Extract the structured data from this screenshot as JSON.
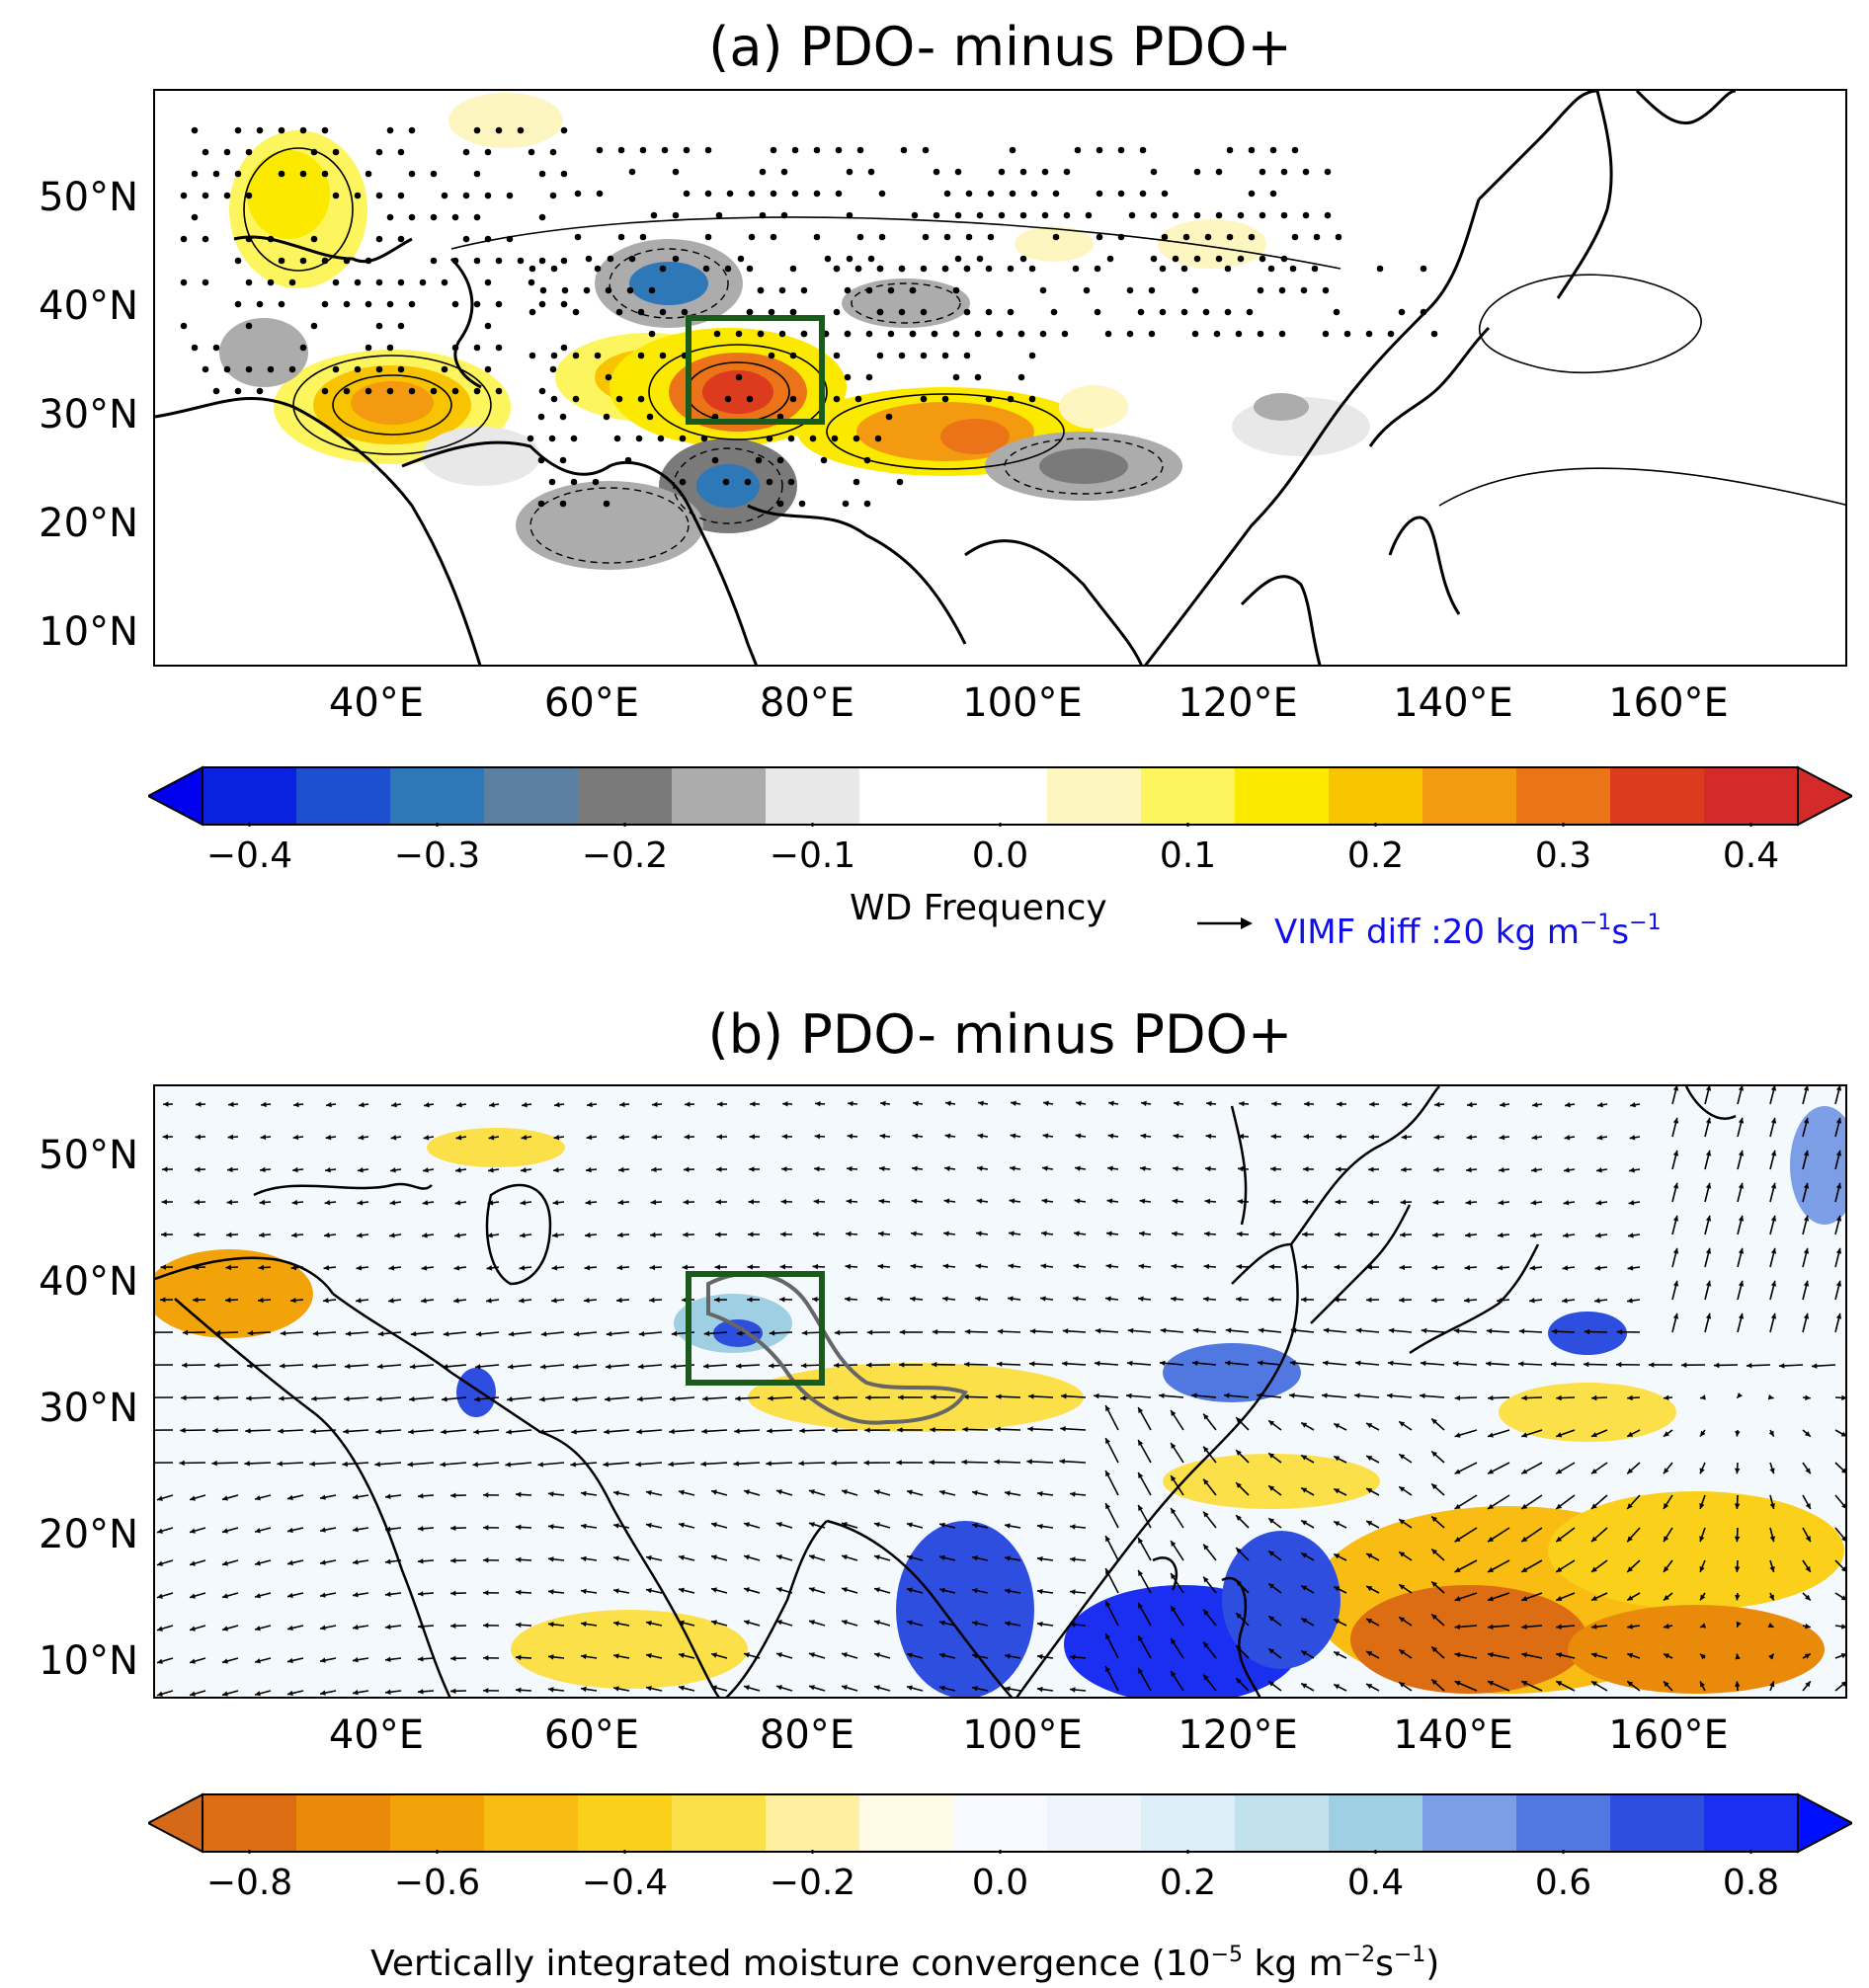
{
  "panel_a": {
    "title": "(a) PDO- minus PDO+",
    "lat_labels": [
      "50°N",
      "40°N",
      "30°N",
      "20°N",
      "10°N"
    ],
    "lon_labels": [
      "40°E",
      "60°E",
      "80°E",
      "100°E",
      "120°E",
      "140°E",
      "160°E"
    ],
    "colorbar": {
      "ticks": [
        "−0.4",
        "−0.3",
        "−0.2",
        "−0.1",
        "0.0",
        "0.1",
        "0.2",
        "0.3",
        "0.4"
      ],
      "label": "WD Frequency",
      "colors": [
        "#0a22e0",
        "#1e4fd1",
        "#2e78b8",
        "#5a7fa0",
        "#7a7a7a",
        "#acacac",
        "#e8e8e8",
        "#ffffff",
        "#ffffff",
        "#fdf6c0",
        "#fdf55e",
        "#fbe900",
        "#f8c400",
        "#f39a10",
        "#ec7418",
        "#dd3b1e",
        "#d42a2a"
      ],
      "extend_low": "#0000ee",
      "extend_high": "#d42a2a"
    },
    "vimf_key": {
      "label": "VIMF diff :20 kg m",
      "exp1": "−1",
      "mid": "s",
      "exp2": "−1"
    }
  },
  "panel_b": {
    "title": "(b) PDO- minus PDO+",
    "lat_labels": [
      "50°N",
      "40°N",
      "30°N",
      "20°N",
      "10°N"
    ],
    "lon_labels": [
      "40°E",
      "60°E",
      "80°E",
      "100°E",
      "120°E",
      "140°E",
      "160°E"
    ],
    "colorbar": {
      "ticks": [
        "−0.8",
        "−0.6",
        "−0.4",
        "−0.2",
        "0.0",
        "0.2",
        "0.4",
        "0.6",
        "0.8"
      ],
      "label_pre": "Vertically integrated moisture convergence (10",
      "label_exp1": "−5",
      "label_mid": " kg m",
      "label_exp2": "−2",
      "label_s": "s",
      "label_exp3": "−1",
      "label_post": ")",
      "colors": [
        "#dc6d12",
        "#e98a0a",
        "#f2a30a",
        "#f8bc12",
        "#fad01a",
        "#fce04a",
        "#fef0a0",
        "#fffbe6",
        "#f7fbff",
        "#eef5fc",
        "#dceef7",
        "#c2e1ee",
        "#9fcfe3",
        "#7c9ee6",
        "#5078e0",
        "#2e4ee0",
        "#1a2ff0"
      ],
      "extend_low": "#d5691a",
      "extend_high": "#0010ff"
    }
  }
}
